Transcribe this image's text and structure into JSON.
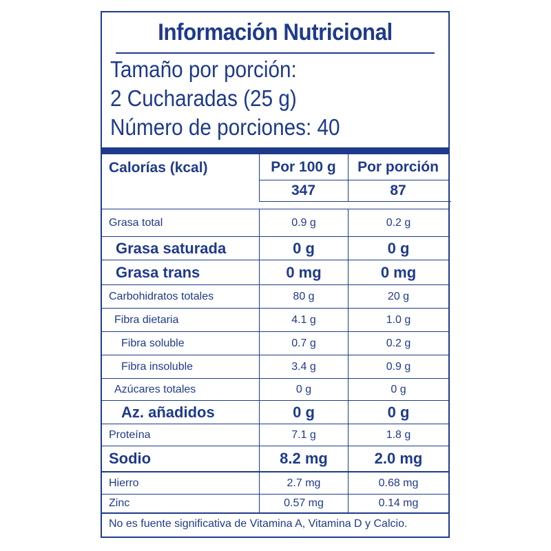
{
  "title": "Información Nutricional",
  "serving": {
    "line1": "Tamaño por porción:",
    "line2": "2 Cucharadas (25 g)",
    "line3": "Número de porciones: 40"
  },
  "header": {
    "label": "Calorías (kcal)",
    "col1": "Por 100 g",
    "col2": "Por porción",
    "val1": "347",
    "val2": "87"
  },
  "rows": [
    {
      "name": "Grasa total",
      "v1": "0.9 g",
      "v2": "0.2 g"
    },
    {
      "name": "Grasa saturada",
      "v1": "0 g",
      "v2": "0 g"
    },
    {
      "name": "Grasa trans",
      "v1": "0 mg",
      "v2": "0 mg"
    },
    {
      "name": "Carbohidratos totales",
      "v1": "80 g",
      "v2": "20 g"
    },
    {
      "name": "Fibra dietaria",
      "v1": "4.1 g",
      "v2": "1.0 g"
    },
    {
      "name": "Fibra soluble",
      "v1": "0.7 g",
      "v2": "0.2 g"
    },
    {
      "name": "Fibra insoluble",
      "v1": "3.4 g",
      "v2": "0.9 g"
    },
    {
      "name": "Azúcares totales",
      "v1": "0 g",
      "v2": "0 g"
    },
    {
      "name": "Az. añadidos",
      "v1": "0 g",
      "v2": "0 g"
    },
    {
      "name": "Proteína",
      "v1": "7.1 g",
      "v2": "1.8 g"
    },
    {
      "name": "Sodio",
      "v1": "8.2 mg",
      "v2": "2.0 mg"
    },
    {
      "name": "Hierro",
      "v1": "2.7 mg",
      "v2": "0.68 mg"
    },
    {
      "name": "Zinc",
      "v1": "0.57 mg",
      "v2": "0.14 mg"
    }
  ],
  "footer": "No es fuente significativa de Vitamina A, Vitamina D y Calcio.",
  "colors": {
    "primary": "#1e3a8a"
  }
}
